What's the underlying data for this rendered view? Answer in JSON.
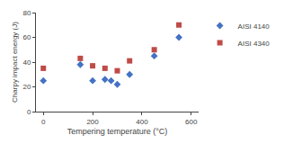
{
  "chart_data": {
    "type": "scatter",
    "xlabel": "Tempering temperature (°C)",
    "ylabel": "Charpy impact energy (J)",
    "series": [
      {
        "name": "AISI 4140",
        "color": "#4472C4",
        "marker": "diamond",
        "x": [
          0,
          150,
          200,
          250,
          275,
          300,
          350,
          450,
          550
        ],
        "values": [
          25,
          38,
          25,
          26,
          25,
          22,
          30,
          45,
          60
        ]
      },
      {
        "name": "AISI 4340",
        "color": "#BE4B48",
        "marker": "square",
        "x": [
          0,
          150,
          200,
          250,
          300,
          350,
          450,
          550
        ],
        "values": [
          35,
          43,
          37,
          35,
          33,
          41,
          50,
          70
        ]
      }
    ],
    "xlim": [
      -30,
      630
    ],
    "ylim": [
      0,
      80
    ],
    "xticks": [
      0,
      200,
      400,
      600
    ],
    "yticks": [
      0,
      20,
      40,
      60,
      80
    ],
    "grid": false,
    "legend": "right"
  }
}
